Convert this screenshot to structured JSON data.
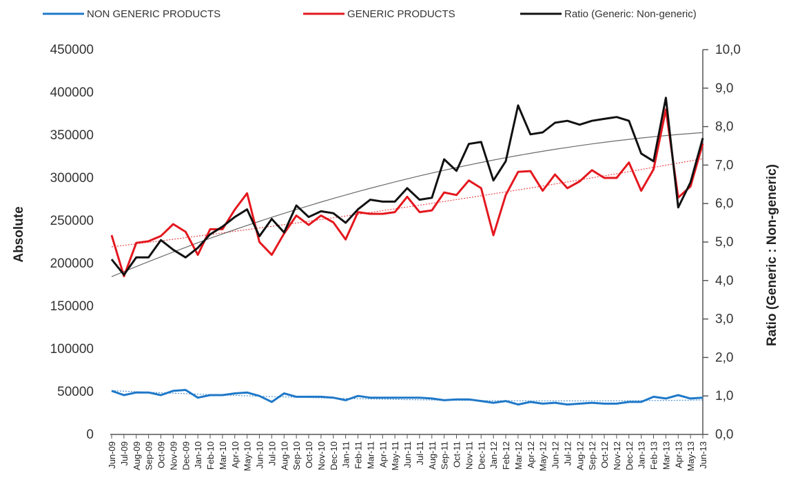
{
  "chart_data": {
    "type": "line",
    "title": "",
    "legend_position": "top",
    "grid": false,
    "left_axis": {
      "label": "Absolute",
      "ylim": [
        0,
        450000
      ],
      "ticks": [
        "0",
        "50000",
        "100000",
        "150000",
        "200000",
        "250000",
        "300000",
        "350000",
        "400000",
        "450000"
      ]
    },
    "right_axis": {
      "label": "Ratio (Generic : Non-generic)",
      "ylim": [
        0,
        10
      ],
      "ticks": [
        "0,0",
        "1,0",
        "2,0",
        "3,0",
        "4,0",
        "5,0",
        "6,0",
        "7,0",
        "8,0",
        "9,0",
        "10,0"
      ]
    },
    "categories": [
      "Jun-09",
      "Jul-09",
      "Aug-09",
      "Sep-09",
      "Oct-09",
      "Nov-09",
      "Dec-09",
      "Jan-10",
      "Feb-10",
      "Mar-10",
      "Apr-10",
      "May-10",
      "Jun-10",
      "Jul-10",
      "Aug-10",
      "Sep-10",
      "Oct-10",
      "Nov-10",
      "Dec-10",
      "Jan-11",
      "Feb-11",
      "Mar-11",
      "Apr-11",
      "May-11",
      "Jun-11",
      "Jul-11",
      "Aug-11",
      "Sep-11",
      "Oct-11",
      "Nov-11",
      "Dec-11",
      "Jan-12",
      "Feb-12",
      "Mar-12",
      "Apr-12",
      "May-12",
      "Jun-12",
      "Jul-12",
      "Aug-12",
      "Sep-12",
      "Oct-12",
      "Nov-12",
      "Dec-12",
      "Jan-13",
      "Feb-13",
      "Mar-13",
      "Apr-13",
      "May-13",
      "Jun-13"
    ],
    "series": [
      {
        "name": "NON GENERIC PRODUCTS",
        "axis": "left",
        "color": "#1f78c8",
        "values": [
          51000,
          46000,
          49000,
          49000,
          46000,
          51000,
          52000,
          43000,
          46000,
          46000,
          48000,
          49000,
          45000,
          38000,
          48000,
          44000,
          44000,
          44000,
          43000,
          40000,
          45000,
          43000,
          43000,
          43000,
          43000,
          43000,
          42000,
          40000,
          41000,
          41000,
          39000,
          37000,
          39000,
          35000,
          38000,
          36000,
          37000,
          35000,
          36000,
          37000,
          36000,
          36000,
          38000,
          38000,
          44000,
          42000,
          46000,
          42000,
          43000
        ]
      },
      {
        "name": "GENERIC PRODUCTS",
        "axis": "left",
        "color": "#e4171e",
        "values": [
          233000,
          185000,
          224000,
          226000,
          232000,
          246000,
          237000,
          210000,
          240000,
          240000,
          263000,
          282000,
          225000,
          210000,
          235000,
          256000,
          245000,
          256000,
          248000,
          228000,
          260000,
          258000,
          258000,
          260000,
          278000,
          260000,
          262000,
          283000,
          280000,
          297000,
          288000,
          233000,
          280000,
          307000,
          308000,
          285000,
          304000,
          288000,
          296000,
          309000,
          300000,
          300000,
          318000,
          285000,
          310000,
          380000,
          277000,
          290000,
          340000
        ]
      },
      {
        "name": "Ratio (Generic: Non-generic)",
        "axis": "right",
        "color": "#111111",
        "values": [
          4.55,
          4.15,
          4.6,
          4.6,
          5.05,
          4.8,
          4.6,
          4.85,
          5.2,
          5.4,
          5.65,
          5.85,
          5.15,
          5.6,
          5.25,
          5.95,
          5.65,
          5.8,
          5.75,
          5.5,
          5.85,
          6.1,
          6.05,
          6.05,
          6.4,
          6.1,
          6.15,
          7.15,
          6.85,
          7.55,
          7.6,
          6.6,
          7.1,
          8.55,
          7.8,
          7.85,
          8.1,
          8.15,
          8.05,
          8.15,
          8.2,
          8.25,
          8.15,
          7.3,
          7.1,
          8.75,
          5.9,
          6.55,
          7.7
        ]
      }
    ]
  }
}
